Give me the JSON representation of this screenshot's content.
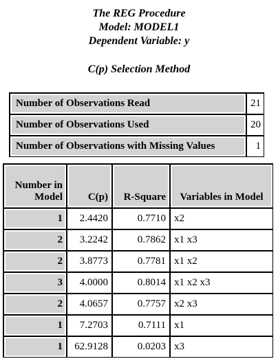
{
  "titles": {
    "line1": "The REG Procedure",
    "line2": "Model: MODEL1",
    "line3": "Dependent Variable: y",
    "method": "C(p) Selection Method"
  },
  "observations": [
    {
      "label": "Number of Observations Read",
      "value": "21"
    },
    {
      "label": "Number of Observations Used",
      "value": "20"
    },
    {
      "label": "Number of Observations with Missing Values",
      "value": "1"
    }
  ],
  "selection": {
    "headers": {
      "model_line1": "Number in",
      "model_line2": "Model",
      "cp": "C(p)",
      "rsq": "R-Square",
      "vars": "Variables in Model"
    },
    "rows": [
      {
        "n": "1",
        "cp": "2.4420",
        "rsq": "0.7710",
        "vars": "x2"
      },
      {
        "n": "2",
        "cp": "3.2242",
        "rsq": "0.7862",
        "vars": "x1 x3"
      },
      {
        "n": "2",
        "cp": "3.8773",
        "rsq": "0.7781",
        "vars": "x1 x2"
      },
      {
        "n": "3",
        "cp": "4.0000",
        "rsq": "0.8014",
        "vars": "x1 x2 x3"
      },
      {
        "n": "2",
        "cp": "4.0657",
        "rsq": "0.7757",
        "vars": "x2 x3"
      },
      {
        "n": "1",
        "cp": "7.2703",
        "rsq": "0.7111",
        "vars": "x1"
      },
      {
        "n": "1",
        "cp": "62.9128",
        "rsq": "0.0203",
        "vars": "x3"
      }
    ]
  }
}
